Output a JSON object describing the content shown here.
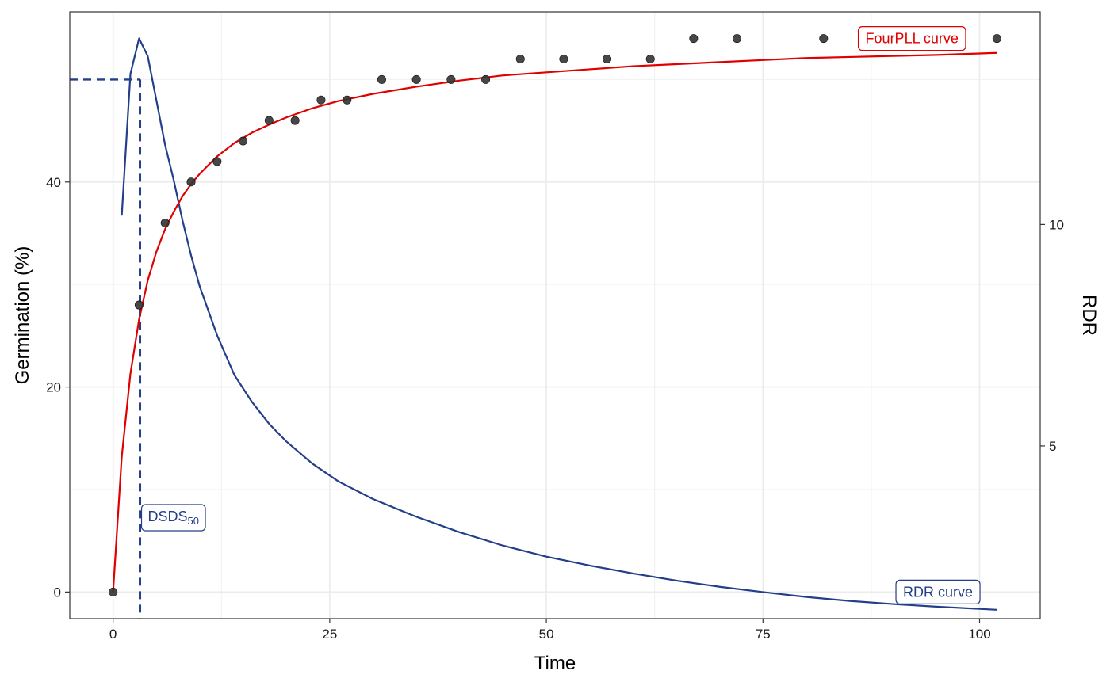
{
  "chart_data": {
    "type": "line",
    "xlabel": "Time",
    "ylabel": "Germination (%)",
    "y2label": "RDR",
    "xlim": [
      -5,
      107
    ],
    "ylim": [
      -2.6,
      56.6
    ],
    "y2lim": [
      1.1,
      14.8
    ],
    "x_ticks": [
      0,
      25,
      50,
      75,
      100
    ],
    "y_ticks": [
      0,
      20,
      40
    ],
    "y2_ticks": [
      5,
      10
    ],
    "grid": true,
    "colors": {
      "fourpll": "#e00000",
      "rdr": "#243f8a",
      "points": "#333333"
    },
    "points": {
      "x": [
        0,
        3,
        6,
        9,
        12,
        15,
        18,
        21,
        24,
        27,
        31,
        35,
        39,
        43,
        47,
        52,
        57,
        62,
        67,
        72,
        82,
        102
      ],
      "y": [
        0,
        28,
        36,
        40,
        42,
        44,
        46,
        46,
        48,
        48,
        50,
        50,
        50,
        50,
        52,
        52,
        52,
        52,
        54,
        54,
        54,
        54
      ]
    },
    "fourpll_curve": {
      "label": "FourPLL curve",
      "x": [
        0,
        1,
        2,
        3,
        4,
        5,
        6,
        7,
        8,
        9,
        10,
        12,
        14,
        16,
        18,
        20,
        23,
        26,
        30,
        35,
        40,
        45,
        50,
        55,
        60,
        65,
        70,
        75,
        80,
        85,
        90,
        95,
        102
      ],
      "y": [
        0,
        13.2,
        21.3,
        26.6,
        30.4,
        33.2,
        35.4,
        37.1,
        38.6,
        39.8,
        40.8,
        42.5,
        43.8,
        44.8,
        45.6,
        46.3,
        47.2,
        47.9,
        48.6,
        49.3,
        49.9,
        50.4,
        50.7,
        51.0,
        51.3,
        51.5,
        51.7,
        51.9,
        52.1,
        52.2,
        52.3,
        52.4,
        52.6
      ]
    },
    "rdr_curve": {
      "label": "RDR curve",
      "x": [
        1,
        2,
        3,
        4,
        5,
        6,
        7,
        8,
        9,
        10,
        12,
        14,
        16,
        18,
        20,
        23,
        26,
        30,
        35,
        40,
        45,
        50,
        55,
        60,
        65,
        70,
        75,
        80,
        85,
        90,
        95,
        102
      ],
      "y": [
        10.2,
        13.4,
        14.2,
        13.8,
        12.8,
        11.8,
        11.0,
        10.1,
        9.3,
        8.6,
        7.5,
        6.6,
        6.0,
        5.5,
        5.1,
        4.6,
        4.2,
        3.8,
        3.4,
        3.05,
        2.75,
        2.5,
        2.3,
        2.12,
        1.96,
        1.82,
        1.7,
        1.59,
        1.5,
        1.43,
        1.37,
        1.3
      ]
    },
    "dsds50": {
      "label_main": "DSDS",
      "label_sub": "50",
      "x": 3.1,
      "y": 50
    }
  }
}
